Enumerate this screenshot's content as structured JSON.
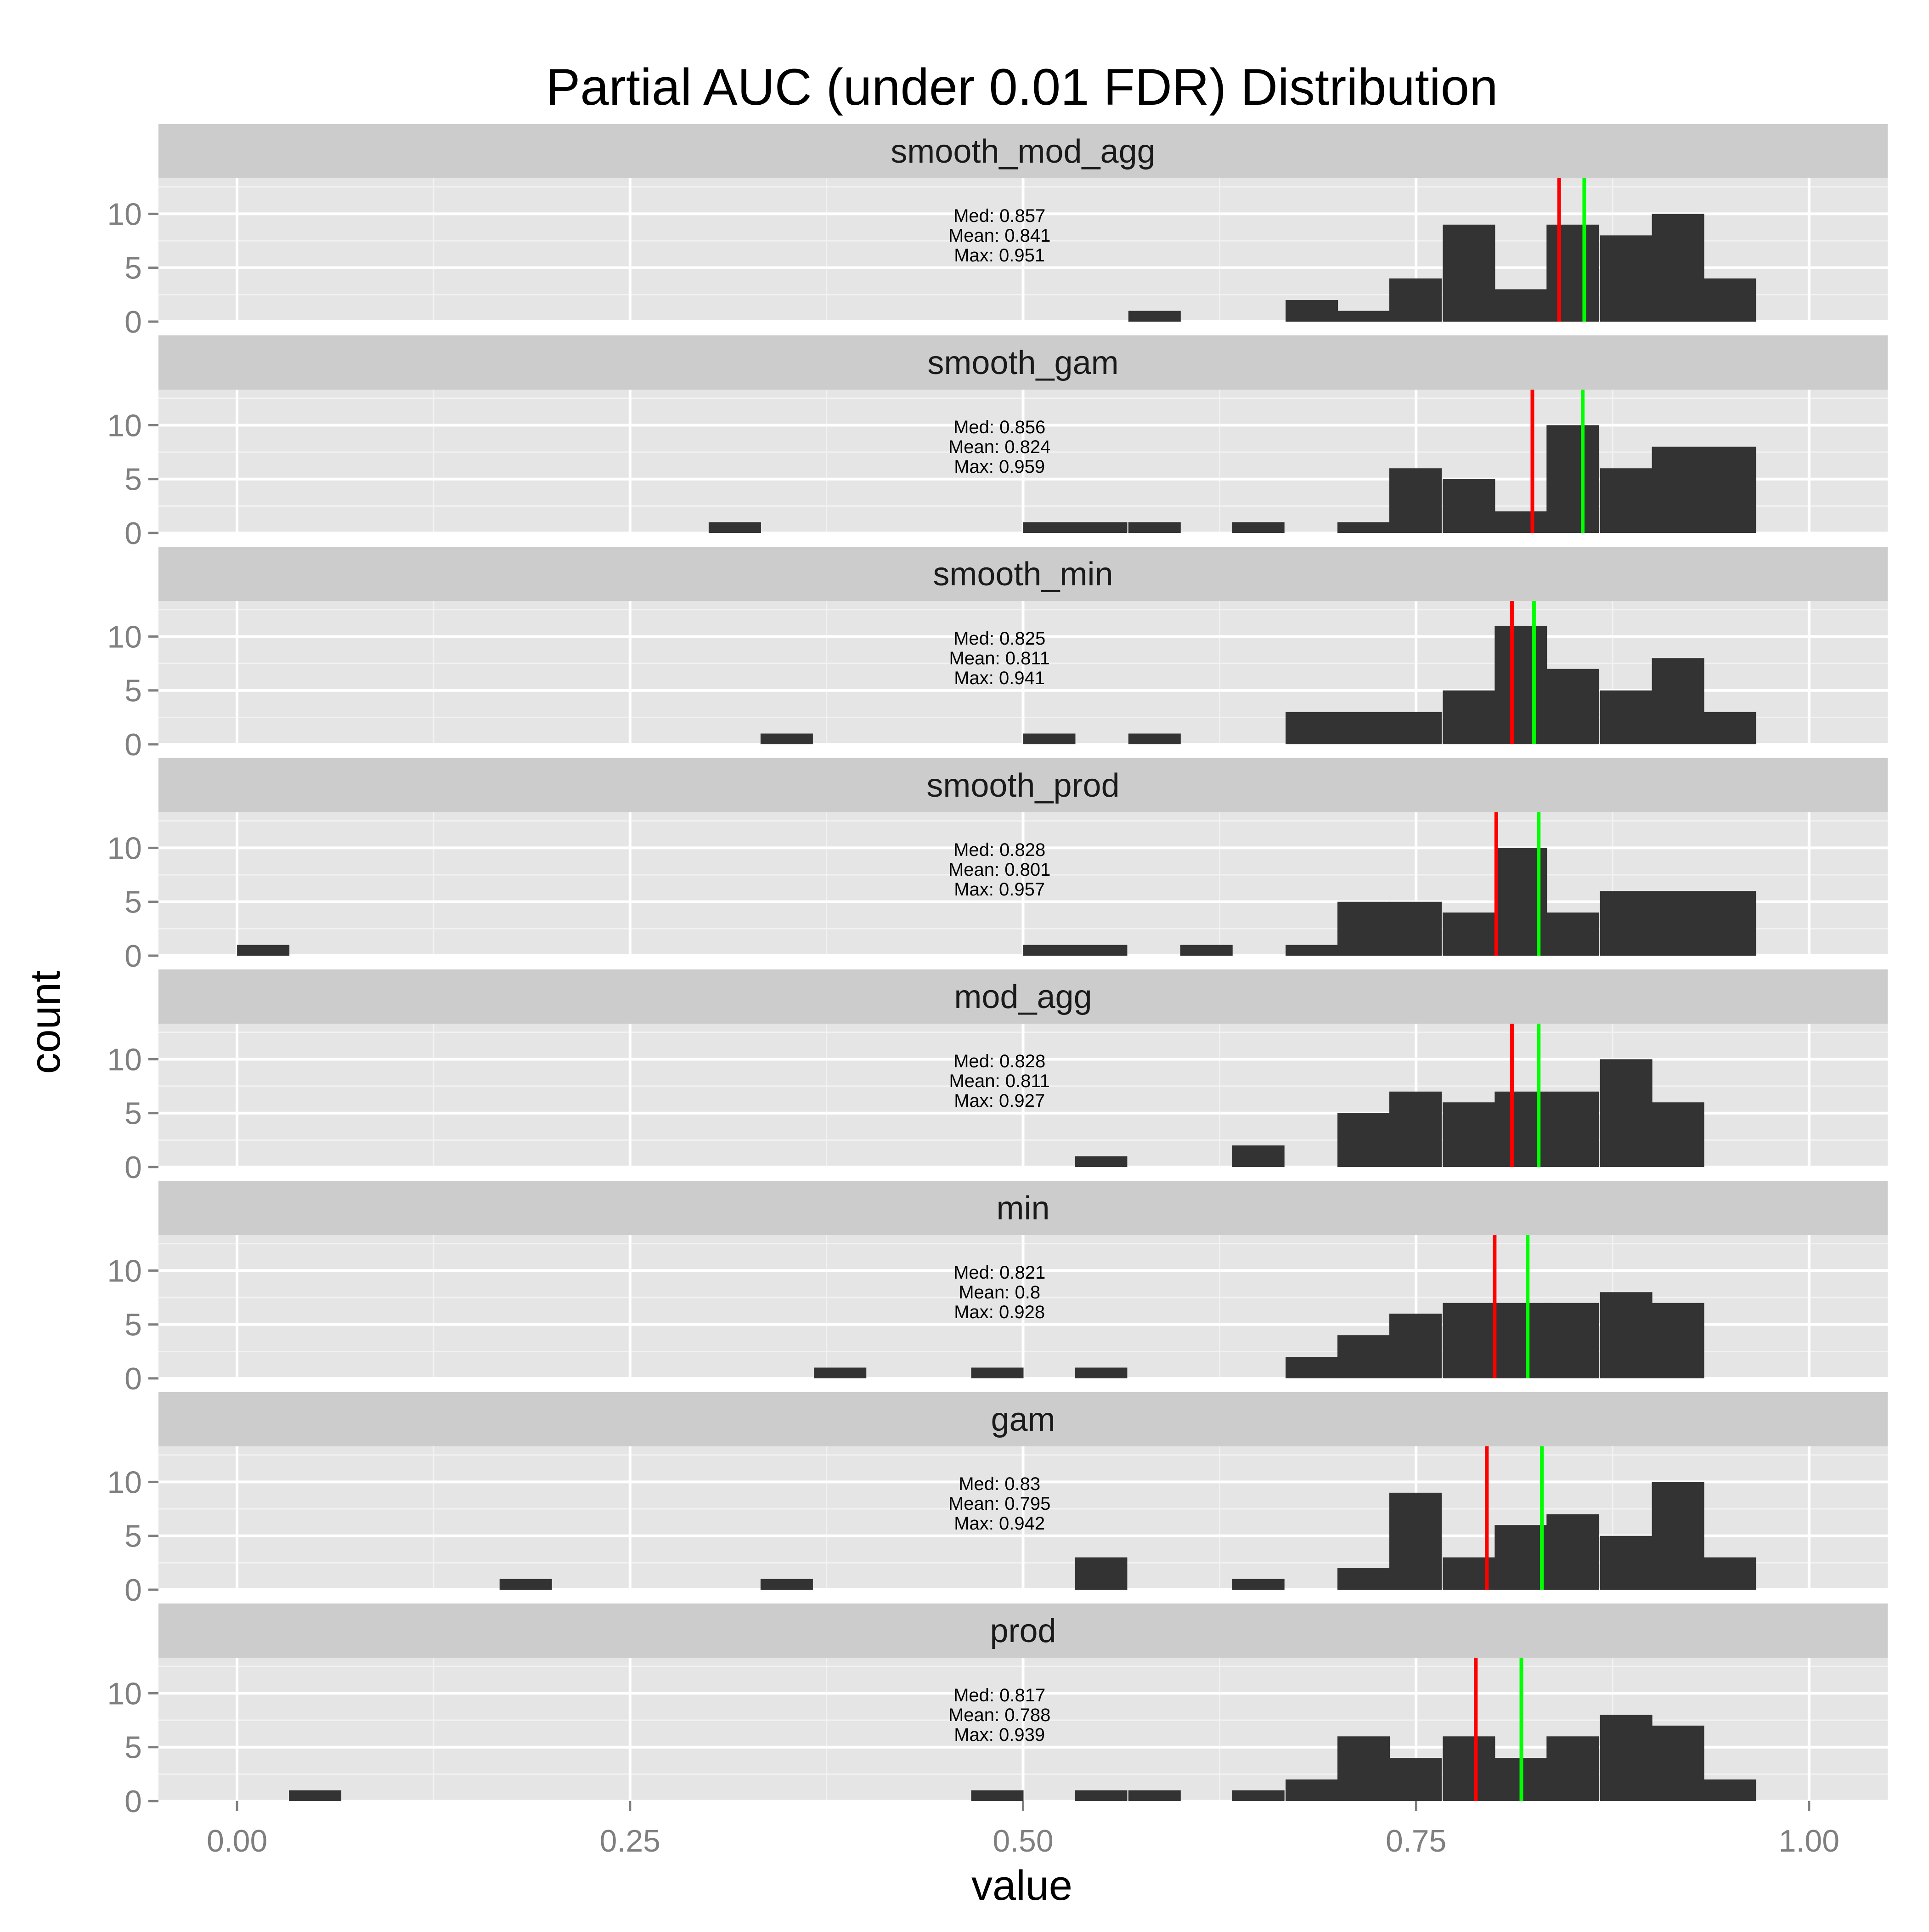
{
  "chart_data": {
    "type": "bar",
    "title": "Partial AUC (under 0.01 FDR) Distribution",
    "xlabel": "value",
    "ylabel": "count",
    "xlim": [
      -0.05,
      1.05
    ],
    "ylim": [
      0,
      13.3
    ],
    "x_ticks": [
      0,
      0.25,
      0.5,
      0.75,
      1.0
    ],
    "x_tick_labels": [
      "0.00",
      "0.25",
      "0.50",
      "0.75",
      "1.00"
    ],
    "y_ticks": [
      0,
      5,
      10
    ],
    "y_tick_labels": [
      "0",
      "5",
      "10"
    ],
    "bin_width": 0.0333,
    "grid": true,
    "colors": {
      "bar": "#333333",
      "median_line": "#00ff00",
      "mean_line": "#ff0000",
      "panel": "#e5e5e5",
      "strip": "#cccccc",
      "grid": "#ffffff"
    },
    "panels": [
      {
        "name": "smooth_mod_agg",
        "median": 0.857,
        "mean": 0.841,
        "max": 0.951,
        "stats_text": [
          "Med: 0.857",
          "Mean: 0.841",
          "Max: 0.951"
        ],
        "bins": [
          {
            "start": 0.567,
            "count": 1
          },
          {
            "start": 0.667,
            "count": 2
          },
          {
            "start": 0.7,
            "count": 1
          },
          {
            "start": 0.733,
            "count": 4
          },
          {
            "start": 0.767,
            "count": 9
          },
          {
            "start": 0.8,
            "count": 3
          },
          {
            "start": 0.833,
            "count": 9
          },
          {
            "start": 0.867,
            "count": 8
          },
          {
            "start": 0.9,
            "count": 10
          },
          {
            "start": 0.933,
            "count": 4
          }
        ]
      },
      {
        "name": "smooth_gam",
        "median": 0.856,
        "mean": 0.824,
        "max": 0.959,
        "stats_text": [
          "Med: 0.856",
          "Mean: 0.824",
          "Max: 0.959"
        ],
        "bins": [
          {
            "start": 0.3,
            "count": 1
          },
          {
            "start": 0.5,
            "count": 1
          },
          {
            "start": 0.533,
            "count": 1
          },
          {
            "start": 0.567,
            "count": 1
          },
          {
            "start": 0.633,
            "count": 1
          },
          {
            "start": 0.7,
            "count": 1
          },
          {
            "start": 0.733,
            "count": 6
          },
          {
            "start": 0.767,
            "count": 5
          },
          {
            "start": 0.8,
            "count": 2
          },
          {
            "start": 0.833,
            "count": 10
          },
          {
            "start": 0.867,
            "count": 6
          },
          {
            "start": 0.9,
            "count": 8
          },
          {
            "start": 0.933,
            "count": 8
          }
        ]
      },
      {
        "name": "smooth_min",
        "median": 0.825,
        "mean": 0.811,
        "max": 0.941,
        "stats_text": [
          "Med: 0.825",
          "Mean: 0.811",
          "Max: 0.941"
        ],
        "bins": [
          {
            "start": 0.333,
            "count": 1
          },
          {
            "start": 0.5,
            "count": 1
          },
          {
            "start": 0.567,
            "count": 1
          },
          {
            "start": 0.667,
            "count": 3
          },
          {
            "start": 0.7,
            "count": 3
          },
          {
            "start": 0.733,
            "count": 3
          },
          {
            "start": 0.767,
            "count": 5
          },
          {
            "start": 0.8,
            "count": 11
          },
          {
            "start": 0.833,
            "count": 7
          },
          {
            "start": 0.867,
            "count": 5
          },
          {
            "start": 0.9,
            "count": 8
          },
          {
            "start": 0.933,
            "count": 3
          }
        ]
      },
      {
        "name": "smooth_prod",
        "median": 0.828,
        "mean": 0.801,
        "max": 0.957,
        "stats_text": [
          "Med: 0.828",
          "Mean: 0.801",
          "Max: 0.957"
        ],
        "bins": [
          {
            "start": 0.0,
            "count": 1
          },
          {
            "start": 0.5,
            "count": 1
          },
          {
            "start": 0.533,
            "count": 1
          },
          {
            "start": 0.6,
            "count": 1
          },
          {
            "start": 0.667,
            "count": 1
          },
          {
            "start": 0.7,
            "count": 5
          },
          {
            "start": 0.733,
            "count": 5
          },
          {
            "start": 0.767,
            "count": 4
          },
          {
            "start": 0.8,
            "count": 10
          },
          {
            "start": 0.833,
            "count": 4
          },
          {
            "start": 0.867,
            "count": 6
          },
          {
            "start": 0.9,
            "count": 6
          },
          {
            "start": 0.933,
            "count": 6
          }
        ]
      },
      {
        "name": "mod_agg",
        "median": 0.828,
        "mean": 0.811,
        "max": 0.927,
        "stats_text": [
          "Med: 0.828",
          "Mean: 0.811",
          "Max: 0.927"
        ],
        "bins": [
          {
            "start": 0.533,
            "count": 1
          },
          {
            "start": 0.633,
            "count": 2
          },
          {
            "start": 0.7,
            "count": 5
          },
          {
            "start": 0.733,
            "count": 7
          },
          {
            "start": 0.767,
            "count": 6
          },
          {
            "start": 0.8,
            "count": 7
          },
          {
            "start": 0.833,
            "count": 7
          },
          {
            "start": 0.867,
            "count": 10
          },
          {
            "start": 0.9,
            "count": 6
          }
        ]
      },
      {
        "name": "min",
        "median": 0.821,
        "mean": 0.8,
        "max": 0.928,
        "stats_text": [
          "Med: 0.821",
          "Mean: 0.8",
          "Max: 0.928"
        ],
        "bins": [
          {
            "start": 0.367,
            "count": 1
          },
          {
            "start": 0.467,
            "count": 1
          },
          {
            "start": 0.533,
            "count": 1
          },
          {
            "start": 0.667,
            "count": 2
          },
          {
            "start": 0.7,
            "count": 4
          },
          {
            "start": 0.733,
            "count": 6
          },
          {
            "start": 0.767,
            "count": 7
          },
          {
            "start": 0.8,
            "count": 7
          },
          {
            "start": 0.833,
            "count": 7
          },
          {
            "start": 0.867,
            "count": 8
          },
          {
            "start": 0.9,
            "count": 7
          }
        ]
      },
      {
        "name": "gam",
        "median": 0.83,
        "mean": 0.795,
        "max": 0.942,
        "stats_text": [
          "Med: 0.83",
          "Mean: 0.795",
          "Max: 0.942"
        ],
        "bins": [
          {
            "start": 0.167,
            "count": 1
          },
          {
            "start": 0.333,
            "count": 1
          },
          {
            "start": 0.533,
            "count": 3
          },
          {
            "start": 0.633,
            "count": 1
          },
          {
            "start": 0.7,
            "count": 2
          },
          {
            "start": 0.733,
            "count": 9
          },
          {
            "start": 0.767,
            "count": 3
          },
          {
            "start": 0.8,
            "count": 6
          },
          {
            "start": 0.833,
            "count": 7
          },
          {
            "start": 0.867,
            "count": 5
          },
          {
            "start": 0.9,
            "count": 10
          },
          {
            "start": 0.933,
            "count": 3
          }
        ]
      },
      {
        "name": "prod",
        "median": 0.817,
        "mean": 0.788,
        "max": 0.939,
        "stats_text": [
          "Med: 0.817",
          "Mean: 0.788",
          "Max: 0.939"
        ],
        "bins": [
          {
            "start": 0.033,
            "count": 1
          },
          {
            "start": 0.467,
            "count": 1
          },
          {
            "start": 0.533,
            "count": 1
          },
          {
            "start": 0.567,
            "count": 1
          },
          {
            "start": 0.633,
            "count": 1
          },
          {
            "start": 0.667,
            "count": 2
          },
          {
            "start": 0.7,
            "count": 6
          },
          {
            "start": 0.733,
            "count": 4
          },
          {
            "start": 0.767,
            "count": 6
          },
          {
            "start": 0.8,
            "count": 4
          },
          {
            "start": 0.833,
            "count": 6
          },
          {
            "start": 0.867,
            "count": 8
          },
          {
            "start": 0.9,
            "count": 7
          },
          {
            "start": 0.933,
            "count": 2
          }
        ]
      }
    ]
  }
}
